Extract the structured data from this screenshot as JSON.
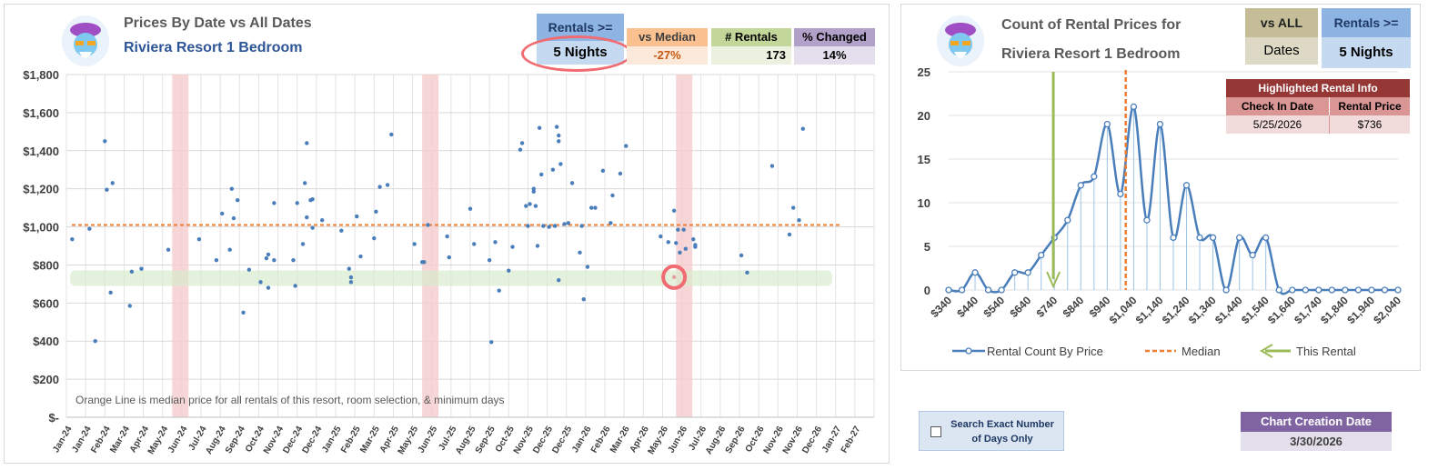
{
  "left": {
    "title_line1": "Prices By Date vs All Dates",
    "title_line2": "Riviera Resort 1 Bedroom",
    "rentals_label": "Rentals >=",
    "rentals_value": "5 Nights",
    "vs_median_label": "vs Median",
    "vs_median_value": "-27%",
    "num_rentals_label": "# Rentals",
    "num_rentals_value": "173",
    "pct_changed_label": "% Changed",
    "pct_changed_value": "14%",
    "note": "Orange Line is median price for all rentals of this resort, room selection, & minimum days"
  },
  "right": {
    "title_line1": "Count of Rental Prices for",
    "title_line2": "Riviera Resort 1 Bedroom",
    "vs_all_label": "vs ALL",
    "vs_all_value": "Dates",
    "rentals_label": "Rentals >=",
    "rentals_value": "5 Nights",
    "highlight": {
      "title": "Highlighted Rental Info",
      "col1": "Check In Date",
      "col2": "Rental Price",
      "val1": "5/25/2026",
      "val2": "$736"
    }
  },
  "controls": {
    "checkbox_label": "Search Exact Number of Days Only",
    "creation_label": "Chart Creation Date",
    "creation_value": "3/30/2026"
  },
  "colors": {
    "scatter": "#4a7ebb",
    "median": "#ed7d31",
    "band_green": "#d8ebcd",
    "band_red": "#f4cccc",
    "highlight_circle": "#f06b72",
    "arrow_green": "#9bbb59"
  },
  "chart_data": [
    {
      "type": "scatter",
      "ylim": [
        0,
        1800
      ],
      "yticks": [
        "$-",
        "$200",
        "$400",
        "$600",
        "$800",
        "$1,000",
        "$1,200",
        "$1,400",
        "$1,600",
        "$1,800"
      ],
      "xticks": [
        "Jan-24",
        "Jan-24",
        "Feb-24",
        "Mar-24",
        "Apr-24",
        "May-24",
        "Jun-24",
        "Jul-24",
        "Aug-24",
        "Sep-24",
        "Oct-24",
        "Nov-24",
        "Dec-24",
        "Dec-24",
        "Jan-25",
        "Feb-25",
        "Mar-25",
        "Apr-25",
        "May-25",
        "Jun-25",
        "Jul-25",
        "Aug-25",
        "Sep-25",
        "Oct-25",
        "Nov-25",
        "Dec-25",
        "Dec-25",
        "Jan-26",
        "Feb-26",
        "Mar-26",
        "Apr-26",
        "May-26",
        "Jun-26",
        "Jul-26",
        "Aug-26",
        "Sep-26",
        "Oct-26",
        "Nov-26",
        "Nov-26",
        "Dec-26",
        "Jan-27",
        "Feb-27"
      ],
      "median": 1010,
      "highlight_point": {
        "x": 31.6,
        "y": 736
      },
      "points": [
        [
          0.3,
          935
        ],
        [
          1.2,
          990
        ],
        [
          1.5,
          400
        ],
        [
          2.0,
          1450
        ],
        [
          2.1,
          1195
        ],
        [
          2.3,
          655
        ],
        [
          2.4,
          1230
        ],
        [
          3.3,
          585
        ],
        [
          3.4,
          765
        ],
        [
          3.9,
          780
        ],
        [
          5.3,
          880
        ],
        [
          6.9,
          935
        ],
        [
          7.8,
          825
        ],
        [
          8.1,
          1070
        ],
        [
          8.5,
          880
        ],
        [
          8.6,
          1200
        ],
        [
          8.7,
          1045
        ],
        [
          8.9,
          1140
        ],
        [
          9.2,
          550
        ],
        [
          9.5,
          775
        ],
        [
          10.1,
          710
        ],
        [
          10.4,
          835
        ],
        [
          10.5,
          680
        ],
        [
          10.5,
          855
        ],
        [
          10.8,
          1125
        ],
        [
          10.8,
          825
        ],
        [
          11.8,
          825
        ],
        [
          11.9,
          690
        ],
        [
          12.0,
          1125
        ],
        [
          12.3,
          910
        ],
        [
          12.4,
          1230
        ],
        [
          12.5,
          1440
        ],
        [
          12.5,
          1050
        ],
        [
          12.7,
          1140
        ],
        [
          12.8,
          1145
        ],
        [
          12.8,
          995
        ],
        [
          13.3,
          1035
        ],
        [
          14.3,
          980
        ],
        [
          14.7,
          780
        ],
        [
          14.8,
          735
        ],
        [
          14.8,
          710
        ],
        [
          15.1,
          1055
        ],
        [
          15.3,
          845
        ],
        [
          16.0,
          940
        ],
        [
          16.1,
          1080
        ],
        [
          16.3,
          1210
        ],
        [
          16.7,
          1220
        ],
        [
          16.9,
          1485
        ],
        [
          18.1,
          910
        ],
        [
          18.5,
          815
        ],
        [
          18.6,
          815
        ],
        [
          18.8,
          1010
        ],
        [
          19.8,
          950
        ],
        [
          19.9,
          840
        ],
        [
          21.0,
          1095
        ],
        [
          21.2,
          910
        ],
        [
          22.0,
          825
        ],
        [
          22.1,
          395
        ],
        [
          22.3,
          920
        ],
        [
          22.5,
          665
        ],
        [
          23.0,
          770
        ],
        [
          23.2,
          895
        ],
        [
          23.6,
          1405
        ],
        [
          23.7,
          1440
        ],
        [
          23.9,
          1110
        ],
        [
          24.0,
          1005
        ],
        [
          24.1,
          1120
        ],
        [
          24.3,
          1185
        ],
        [
          24.3,
          1200
        ],
        [
          24.4,
          1110
        ],
        [
          24.5,
          900
        ],
        [
          24.6,
          1520
        ],
        [
          24.7,
          1275
        ],
        [
          24.8,
          1005
        ],
        [
          25.1,
          1000
        ],
        [
          25.3,
          1300
        ],
        [
          25.4,
          1005
        ],
        [
          25.5,
          1525
        ],
        [
          25.6,
          1480
        ],
        [
          25.6,
          720
        ],
        [
          25.6,
          1450
        ],
        [
          25.7,
          1330
        ],
        [
          25.9,
          1015
        ],
        [
          26.1,
          1020
        ],
        [
          26.3,
          1230
        ],
        [
          26.7,
          865
        ],
        [
          26.8,
          1005
        ],
        [
          26.9,
          620
        ],
        [
          27.1,
          790
        ],
        [
          27.3,
          1100
        ],
        [
          27.5,
          1100
        ],
        [
          27.9,
          1295
        ],
        [
          28.3,
          1020
        ],
        [
          28.4,
          1165
        ],
        [
          28.8,
          1280
        ],
        [
          29.1,
          1425
        ],
        [
          30.9,
          950
        ],
        [
          31.3,
          920
        ],
        [
          31.6,
          1085
        ],
        [
          31.7,
          915
        ],
        [
          31.8,
          985
        ],
        [
          31.9,
          865
        ],
        [
          32.1,
          985
        ],
        [
          32.2,
          885
        ],
        [
          32.6,
          935
        ],
        [
          32.7,
          905
        ],
        [
          32.7,
          895
        ],
        [
          35.1,
          850
        ],
        [
          35.4,
          760
        ],
        [
          36.7,
          1320
        ],
        [
          37.6,
          960
        ],
        [
          37.8,
          1100
        ],
        [
          38.1,
          1035
        ],
        [
          38.3,
          1515
        ]
      ],
      "red_bands": [
        5.5,
        18.5,
        31.7
      ]
    },
    {
      "type": "line",
      "series": [
        {
          "name": "Rental Count By Price"
        }
      ],
      "legend": [
        "Rental Count By Price",
        "Median",
        "This Rental"
      ],
      "ylim": [
        0,
        25
      ],
      "yticks": [
        0,
        5,
        10,
        15,
        20,
        25
      ],
      "xtick_labels": [
        "$340",
        "$440",
        "$540",
        "$640",
        "$740",
        "$840",
        "$940",
        "$1,040",
        "$1,140",
        "$1,240",
        "$1,340",
        "$1,440",
        "$1,540",
        "$1,640",
        "$1,740",
        "$1,840",
        "$1,940",
        "$2,040"
      ],
      "x": [
        340,
        390,
        440,
        490,
        540,
        590,
        640,
        690,
        740,
        790,
        840,
        890,
        940,
        990,
        1040,
        1090,
        1140,
        1190,
        1240,
        1290,
        1340,
        1390,
        1440,
        1490,
        1540,
        1590,
        1640,
        1690,
        1740,
        1790,
        1840,
        1890,
        1940,
        1990,
        2040
      ],
      "values": [
        0,
        0,
        2,
        0,
        0,
        2,
        2,
        4,
        6,
        8,
        12,
        13,
        19,
        11,
        21,
        8,
        19,
        6,
        12,
        6,
        6,
        0,
        6,
        4,
        6,
        0,
        0,
        0,
        0,
        0,
        0,
        0,
        0,
        0,
        0
      ],
      "median": 1010,
      "this_rental": 736
    }
  ]
}
